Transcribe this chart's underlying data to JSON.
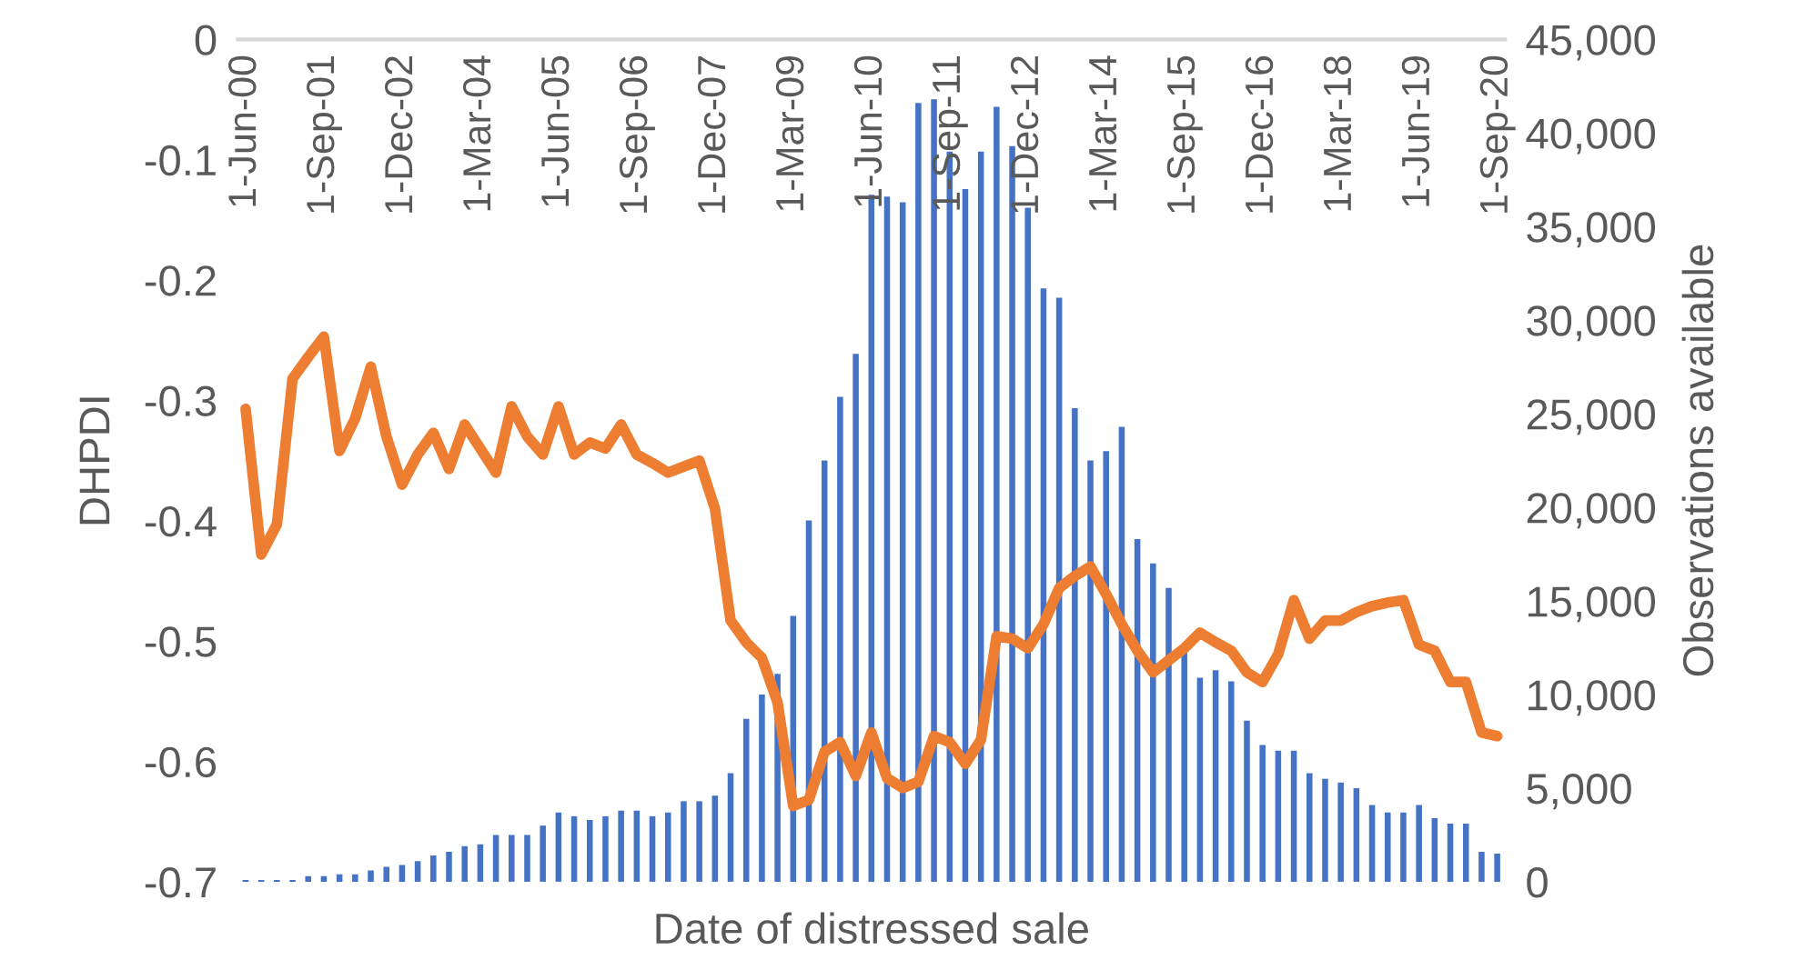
{
  "chart_data": {
    "type": "bar",
    "xlabel": "Date of distressed sale",
    "ylabel": "DHPDI",
    "y2label": "Observations available",
    "categories": [
      "1-Jun-00",
      null,
      null,
      null,
      null,
      "1-Sep-01",
      null,
      null,
      null,
      null,
      "1-Dec-02",
      null,
      null,
      null,
      null,
      "1-Mar-04",
      null,
      null,
      null,
      null,
      "1-Jun-05",
      null,
      null,
      null,
      null,
      "1-Sep-06",
      null,
      null,
      null,
      null,
      "1-Dec-07",
      null,
      null,
      null,
      null,
      "1-Mar-09",
      null,
      null,
      null,
      null,
      "1-Jun-10",
      null,
      null,
      null,
      null,
      "1-Sep-11",
      null,
      null,
      null,
      null,
      "1-Dec-12",
      null,
      null,
      null,
      null,
      "1-Mar-14",
      null,
      null,
      null,
      null,
      "1-Sep-15",
      null,
      null,
      null,
      null,
      "1-Dec-16",
      null,
      null,
      null,
      null,
      "1-Mar-18",
      null,
      null,
      null,
      null,
      "1-Jun-19",
      null,
      null,
      null,
      null,
      "1-Sep-20"
    ],
    "ylim": [
      -0.7,
      0
    ],
    "yticks": [
      -0.7,
      -0.6,
      -0.5,
      -0.4,
      -0.3,
      -0.2,
      -0.1,
      0
    ],
    "y2lim": [
      0,
      45000
    ],
    "y2ticks": [
      0,
      {
        "value": 5000,
        "label": "5,000"
      },
      {
        "value": 10000,
        "label": "10,000"
      },
      {
        "value": 15000,
        "label": "15,000"
      },
      {
        "value": 20000,
        "label": "20,000"
      },
      {
        "value": 25000,
        "label": "25,000"
      },
      {
        "value": 30000,
        "label": "30,000"
      },
      {
        "value": 35000,
        "label": "35,000"
      },
      {
        "value": 40000,
        "label": "40,000"
      },
      {
        "value": 45000,
        "label": "45,000"
      }
    ],
    "series": [
      {
        "axis": "y2",
        "color": "#4472c4",
        "values": [
          100,
          100,
          100,
          100,
          300,
          300,
          400,
          400,
          600,
          800,
          900,
          1100,
          1400,
          1600,
          1900,
          2000,
          2500,
          2500,
          2500,
          3000,
          3700,
          3500,
          3300,
          3500,
          3800,
          3800,
          3500,
          3700,
          4300,
          4300,
          4600,
          5800,
          8700,
          10000,
          11100,
          14200,
          19300,
          22500,
          25900,
          28200,
          36700,
          36600,
          36300,
          41600,
          41800,
          39000,
          37000,
          39000,
          41400,
          39300,
          36000,
          31700,
          31200,
          25300,
          22500,
          23000,
          24300,
          18300,
          17000,
          15700,
          12500,
          10900,
          11300,
          10700,
          8600,
          7300,
          7000,
          7000,
          5800,
          5500,
          5300,
          5000,
          4100,
          3700,
          3700,
          4100,
          3400,
          3100,
          3100,
          1600,
          1500
        ]
      },
      {
        "type": "line",
        "axis": "y",
        "color": "#ed7d31",
        "values": [
          -0.307,
          -0.428,
          -0.403,
          -0.282,
          -0.264,
          -0.247,
          -0.342,
          -0.315,
          -0.272,
          -0.33,
          -0.37,
          -0.345,
          -0.327,
          -0.357,
          -0.32,
          -0.34,
          -0.36,
          -0.305,
          -0.33,
          -0.345,
          -0.305,
          -0.345,
          -0.335,
          -0.34,
          -0.32,
          -0.345,
          -0.352,
          -0.36,
          -0.355,
          -0.35,
          -0.39,
          -0.483,
          -0.501,
          -0.514,
          -0.551,
          -0.637,
          -0.632,
          -0.592,
          -0.584,
          -0.612,
          -0.576,
          -0.614,
          -0.622,
          -0.617,
          -0.579,
          -0.584,
          -0.602,
          -0.582,
          -0.496,
          -0.498,
          -0.506,
          -0.486,
          -0.456,
          -0.446,
          -0.438,
          -0.461,
          -0.486,
          -0.508,
          -0.526,
          -0.516,
          -0.506,
          -0.493,
          -0.501,
          -0.508,
          -0.526,
          -0.534,
          -0.511,
          -0.466,
          -0.498,
          -0.483,
          -0.483,
          -0.476,
          -0.471,
          -0.468,
          -0.466,
          -0.503,
          -0.508,
          -0.534,
          -0.534,
          -0.576,
          -0.579
        ]
      }
    ]
  }
}
